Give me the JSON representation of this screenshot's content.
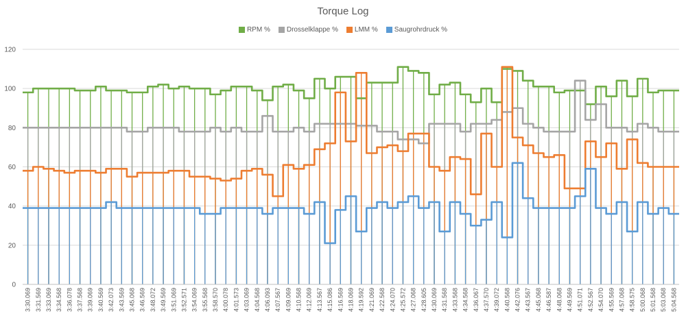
{
  "chart_data": {
    "type": "area",
    "title": "Torque Log",
    "xlabel": "",
    "ylabel": "",
    "ylim": [
      0,
      120
    ],
    "yticks": [
      0,
      20,
      40,
      60,
      80,
      100,
      120
    ],
    "grid": true,
    "legend_position": "top",
    "x": [
      "3:30.069",
      "3:31.569",
      "3:33.069",
      "3:34.568",
      "3:36.078",
      "3:37.568",
      "3:39.069",
      "3:40.569",
      "3:42.073",
      "3:43.569",
      "3:45.068",
      "3:46.569",
      "3:48.072",
      "3:49.569",
      "3:51.069",
      "3:52.571",
      "3:54.069",
      "3:55.568",
      "3:58.570",
      "4:00.078",
      "4:01.573",
      "4:03.069",
      "4:04.568",
      "4:06.093",
      "4:07.567",
      "4:09.069",
      "4:10.568",
      "4:12.069",
      "4:13.567",
      "4:15.086",
      "4:16.569",
      "4:18.069",
      "4:19.592",
      "4:21.069",
      "4:22.568",
      "4:24.070",
      "4:25.572",
      "4:27.068",
      "4:28.605",
      "4:30.069",
      "4:31.568",
      "4:33.568",
      "4:34.568",
      "4:36.067",
      "4:37.570",
      "4:39.072",
      "4:40.568",
      "4:42.076",
      "4:43.567",
      "4:45.068",
      "4:46.587",
      "4:48.068",
      "4:49.569",
      "4:51.071",
      "4:52.567",
      "4:54.070",
      "4:55.569",
      "4:57.068",
      "4:58.575",
      "5:00.068",
      "5:01.568",
      "5:03.068",
      "5:04.568"
    ],
    "series": [
      {
        "name": "RPM %",
        "color": "#70ad47",
        "values": [
          98,
          100,
          100,
          100,
          100,
          99,
          99,
          101,
          99,
          99,
          98,
          98,
          101,
          102,
          100,
          101,
          100,
          100,
          97,
          99,
          101,
          101,
          99,
          94,
          101,
          102,
          99,
          95,
          105,
          100,
          106,
          106,
          95,
          103,
          103,
          103,
          111,
          109,
          108,
          97,
          102,
          103,
          97,
          93,
          100,
          93,
          110,
          109,
          104,
          101,
          101,
          98,
          99,
          99,
          92,
          101,
          96,
          104,
          96,
          105,
          98,
          99,
          99
        ]
      },
      {
        "name": "Drosselklappe %",
        "color": "#a5a5a5",
        "values": [
          80,
          80,
          80,
          80,
          80,
          80,
          80,
          80,
          80,
          80,
          78,
          78,
          80,
          80,
          80,
          78,
          78,
          78,
          80,
          78,
          80,
          78,
          78,
          86,
          78,
          78,
          80,
          78,
          82,
          82,
          82,
          82,
          81,
          81,
          78,
          78,
          74,
          74,
          72,
          82,
          82,
          82,
          78,
          82,
          82,
          84,
          88,
          90,
          82,
          80,
          78,
          78,
          78,
          104,
          84,
          92,
          80,
          80,
          78,
          82,
          80,
          78,
          78
        ]
      },
      {
        "name": "LMM %",
        "color": "#ed7d31",
        "values": [
          58,
          60,
          59,
          58,
          57,
          58,
          58,
          57,
          59,
          59,
          55,
          57,
          57,
          57,
          58,
          58,
          55,
          55,
          54,
          53,
          54,
          58,
          59,
          56,
          45,
          61,
          59,
          61,
          69,
          72,
          98,
          73,
          108,
          67,
          70,
          71,
          68,
          77,
          77,
          60,
          58,
          65,
          64,
          46,
          77,
          60,
          111,
          75,
          71,
          67,
          65,
          66,
          49,
          49,
          73,
          65,
          72,
          59,
          74,
          62,
          60,
          60,
          60
        ]
      },
      {
        "name": "Saugrohrdruck %",
        "color": "#5b9bd5",
        "values": [
          39,
          39,
          39,
          39,
          39,
          39,
          39,
          39,
          42,
          39,
          39,
          39,
          39,
          39,
          39,
          39,
          39,
          36,
          36,
          39,
          39,
          39,
          39,
          36,
          39,
          39,
          39,
          36,
          42,
          21,
          38,
          45,
          27,
          39,
          42,
          39,
          42,
          45,
          39,
          42,
          27,
          42,
          36,
          30,
          33,
          42,
          24,
          62,
          44,
          39,
          39,
          39,
          39,
          45,
          59,
          39,
          36,
          42,
          27,
          42,
          36,
          39,
          36
        ]
      }
    ]
  }
}
